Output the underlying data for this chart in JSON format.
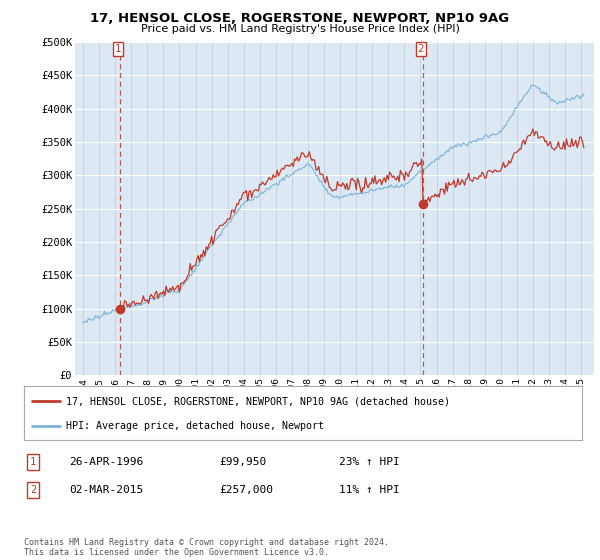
{
  "title": "17, HENSOL CLOSE, ROGERSTONE, NEWPORT, NP10 9AG",
  "subtitle": "Price paid vs. HM Land Registry's House Price Index (HPI)",
  "ylim": [
    0,
    500000
  ],
  "yticks": [
    0,
    50000,
    100000,
    150000,
    200000,
    250000,
    300000,
    350000,
    400000,
    450000,
    500000
  ],
  "ytick_labels": [
    "£0",
    "£50K",
    "£100K",
    "£150K",
    "£200K",
    "£250K",
    "£300K",
    "£350K",
    "£400K",
    "£450K",
    "£500K"
  ],
  "xtick_years": [
    "1994",
    "1995",
    "1996",
    "1997",
    "1998",
    "1999",
    "2000",
    "2001",
    "2002",
    "2003",
    "2004",
    "2005",
    "2006",
    "2007",
    "2008",
    "2009",
    "2010",
    "2011",
    "2012",
    "2013",
    "2014",
    "2015",
    "2016",
    "2017",
    "2018",
    "2019",
    "2020",
    "2021",
    "2022",
    "2023",
    "2024",
    "2025"
  ],
  "hpi_color": "#7ab4d8",
  "price_color": "#c0392b",
  "transaction1_year": 1996.32,
  "transaction1_price": 99950,
  "transaction2_year": 2015.17,
  "transaction2_price": 257000,
  "vline1_year": 1996.32,
  "vline2_year": 2015.17,
  "legend_line1": "17, HENSOL CLOSE, ROGERSTONE, NEWPORT, NP10 9AG (detached house)",
  "legend_line2": "HPI: Average price, detached house, Newport",
  "table_row1": [
    "1",
    "26-APR-1996",
    "£99,950",
    "23% ↑ HPI"
  ],
  "table_row2": [
    "2",
    "02-MAR-2015",
    "£257,000",
    "11% ↑ HPI"
  ],
  "footnote": "Contains HM Land Registry data © Crown copyright and database right 2024.\nThis data is licensed under the Open Government Licence v3.0.",
  "bg_color": "#ffffff",
  "plot_bg_color": "#dce9f5"
}
